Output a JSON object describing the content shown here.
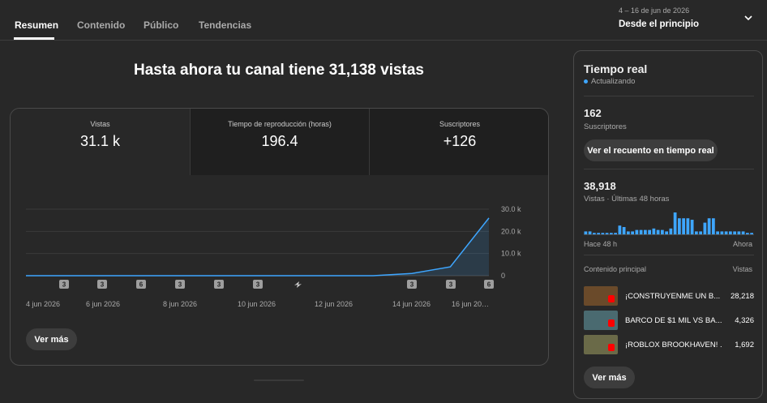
{
  "tabs": [
    "Resumen",
    "Contenido",
    "Público",
    "Tendencias"
  ],
  "date_range": {
    "sub": "4 – 16 de jun de 2026",
    "main": "Desde el principio"
  },
  "headline": "Hasta ahora tu canal tiene 31,138 vistas",
  "metrics": [
    {
      "label": "Vistas",
      "value": "31.1 k"
    },
    {
      "label": "Tiempo de reproducción (horas)",
      "value": "196.4"
    },
    {
      "label": "Suscriptores",
      "value": "+126"
    }
  ],
  "chart_data": {
    "type": "area",
    "x": [
      "4 jun 2026",
      "5 jun 2026",
      "6 jun 2026",
      "7 jun 2026",
      "8 jun 2026",
      "9 jun 2026",
      "10 jun 2026",
      "11 jun 2026",
      "12 jun 2026",
      "13 jun 2026",
      "14 jun 2026",
      "15 jun 2026",
      "16 jun 2026"
    ],
    "series": [
      {
        "values": [
          0,
          0,
          0,
          0,
          0,
          0,
          0,
          0,
          0,
          0,
          1000,
          4000,
          26000
        ]
      }
    ],
    "y_ticks": [
      "0",
      "10.0 k",
      "20.0 k",
      "30.0 k"
    ],
    "x_tick_labels": [
      "4 jun 2026",
      "6 jun 2026",
      "8 jun 2026",
      "10 jun 2026",
      "12 jun 2026",
      "14 jun 2026",
      "16 jun 20…"
    ],
    "ylim": [
      0,
      30000
    ],
    "grid": true,
    "color": "#3ea6ff",
    "upload_markers": [
      "3",
      "3",
      "6",
      "3",
      "3",
      "3",
      "icon",
      "3",
      "3",
      "6"
    ]
  },
  "ver_mas": "Ver más",
  "realtime": {
    "title": "Tiempo real",
    "status": "Actualizando",
    "subs_value": "162",
    "subs_label": "Suscriptores",
    "live_count_button": "Ver el recuento en tiempo real",
    "views_value": "38,918",
    "views_label": "Vistas · Últimas 48 horas",
    "bars": [
      2,
      2,
      1,
      1,
      1,
      1,
      1,
      1,
      6,
      5,
      2,
      2,
      3,
      3,
      3,
      3,
      4,
      3,
      3,
      2,
      4,
      15,
      11,
      11,
      11,
      10,
      2,
      2,
      8,
      11,
      11,
      2,
      2,
      2,
      2,
      2,
      2,
      2,
      1,
      1
    ],
    "axis_start": "Hace 48 h",
    "axis_end": "Ahora",
    "top_content_label": "Contenido principal",
    "top_content_views_label": "Vistas",
    "videos": [
      {
        "title": "¡CONSTRUYENME UN B...",
        "views": "28,218",
        "thumb_color": "#6a4a2a"
      },
      {
        "title": "BARCO DE $1 MIL VS BA...",
        "views": "4,326",
        "thumb_color": "#4a6a70"
      },
      {
        "title": "¡ROBLOX BROOKHAVEN! ...",
        "views": "1,692",
        "thumb_color": "#6a6a48"
      }
    ],
    "ver_mas": "Ver más"
  }
}
